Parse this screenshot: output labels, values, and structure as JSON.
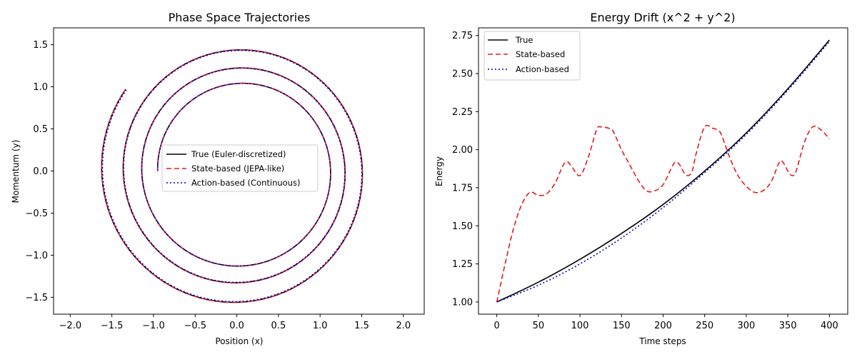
{
  "chart_data": [
    {
      "type": "line",
      "title": "Phase Space Trajectories",
      "xlabel": "Position (x)",
      "ylabel": "Momentum (y)",
      "xlim": [
        -2.2,
        2.25
      ],
      "ylim": [
        -1.7,
        1.7
      ],
      "xticks": [
        "−2.0",
        "−1.5",
        "−1.0",
        "−0.5",
        "0.0",
        "0.5",
        "1.0",
        "1.5",
        "2.0"
      ],
      "xtick_values": [
        -2.0,
        -1.5,
        -1.0,
        -0.5,
        0.0,
        0.5,
        1.0,
        1.5,
        2.0
      ],
      "yticks": [
        "−1.5",
        "−1.0",
        "−0.5",
        "0.0",
        "0.5",
        "1.0",
        "1.5"
      ],
      "ytick_values": [
        -1.5,
        -1.0,
        -0.5,
        0.0,
        0.5,
        1.0,
        1.5
      ],
      "grid": false,
      "legend_position": "center",
      "series": [
        {
          "name": "True (Euler-discretized)",
          "color": "#000000",
          "style": "solid",
          "r_start": 1.0,
          "r_end": 1.65,
          "turns": 3.1
        },
        {
          "name": "State-based (JEPA-like)",
          "color": "#e41a1c",
          "style": "dashed",
          "r_start": 1.0,
          "r_end": 1.65,
          "turns": 3.1
        },
        {
          "name": "Action-based (Continuous)",
          "color": "#0000cc",
          "style": "dotted",
          "r_start": 1.0,
          "r_end": 1.64,
          "turns": 3.1
        }
      ]
    },
    {
      "type": "line",
      "title": "Energy Drift (x^2 + y^2)",
      "xlabel": "Time steps",
      "ylabel": "Energy",
      "xlim": [
        -22,
        422
      ],
      "ylim": [
        0.92,
        2.8
      ],
      "xticks": [
        "0",
        "50",
        "100",
        "150",
        "200",
        "250",
        "300",
        "350",
        "400"
      ],
      "xtick_values": [
        0,
        50,
        100,
        150,
        200,
        250,
        300,
        350,
        400
      ],
      "yticks": [
        "1.00",
        "1.25",
        "1.50",
        "1.75",
        "2.00",
        "2.25",
        "2.50",
        "2.75"
      ],
      "ytick_values": [
        1.0,
        1.25,
        1.5,
        1.75,
        2.0,
        2.25,
        2.5,
        2.75
      ],
      "grid": false,
      "legend_position": "upper left",
      "series": [
        {
          "name": "True",
          "color": "#000000",
          "style": "solid",
          "x": [
            0,
            50,
            100,
            150,
            200,
            250,
            300,
            350,
            400
          ],
          "y": [
            1.0,
            1.13,
            1.28,
            1.45,
            1.64,
            1.86,
            2.11,
            2.4,
            2.72
          ]
        },
        {
          "name": "State-based",
          "color": "#e41a1c",
          "style": "dashed",
          "x": [
            0,
            10,
            20,
            30,
            40,
            50,
            60,
            70,
            80,
            85,
            90,
            100,
            110,
            120,
            125,
            135,
            140,
            150,
            160,
            170,
            180,
            190,
            200,
            210,
            215,
            220,
            225,
            230,
            235,
            240,
            250,
            260,
            265,
            270,
            280,
            290,
            300,
            310,
            320,
            330,
            340,
            345,
            350,
            355,
            360,
            370,
            380,
            390,
            400
          ],
          "y": [
            1.0,
            1.25,
            1.48,
            1.64,
            1.72,
            1.7,
            1.71,
            1.78,
            1.9,
            1.92,
            1.89,
            1.83,
            1.95,
            2.13,
            2.15,
            2.14,
            2.12,
            2.0,
            1.9,
            1.8,
            1.73,
            1.73,
            1.77,
            1.88,
            1.92,
            1.9,
            1.85,
            1.83,
            1.86,
            1.98,
            2.15,
            2.14,
            2.13,
            2.1,
            1.95,
            1.83,
            1.76,
            1.72,
            1.73,
            1.79,
            1.92,
            1.91,
            1.86,
            1.83,
            1.86,
            2.05,
            2.15,
            2.13,
            2.07
          ]
        },
        {
          "name": "Action-based",
          "color": "#0000cc",
          "style": "dotted",
          "x": [
            0,
            50,
            100,
            150,
            200,
            250,
            300,
            350,
            400
          ],
          "y": [
            1.0,
            1.11,
            1.25,
            1.42,
            1.62,
            1.85,
            2.1,
            2.39,
            2.71
          ]
        }
      ]
    }
  ]
}
